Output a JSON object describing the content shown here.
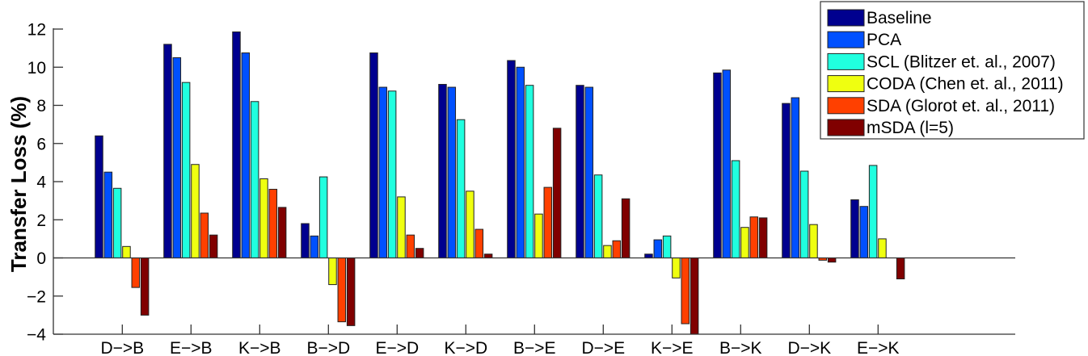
{
  "chart_data": {
    "type": "bar",
    "title": "",
    "xlabel": "",
    "ylabel": "Transfer Loss (%)",
    "ylim": [
      -4,
      12
    ],
    "yticks": [
      -4,
      -2,
      0,
      2,
      4,
      6,
      8,
      10,
      12
    ],
    "grid": false,
    "legend_position": "top-right",
    "categories": [
      "D->B",
      "E->B",
      "K->B",
      "B->D",
      "E->D",
      "K->D",
      "B->E",
      "D->E",
      "K->E",
      "B->K",
      "D->K",
      "E->K"
    ],
    "category_labels": [
      "D−>B",
      "E−>B",
      "K−>B",
      "B−>D",
      "E−>D",
      "K−>D",
      "B−>E",
      "D−>E",
      "K−>E",
      "B−>K",
      "D−>K",
      "E−>K"
    ],
    "series": [
      {
        "name": "Baseline",
        "color": "#00008f",
        "values": [
          6.4,
          11.2,
          11.85,
          1.8,
          10.75,
          9.1,
          10.35,
          9.05,
          0.2,
          9.7,
          8.1,
          3.05
        ]
      },
      {
        "name": "PCA",
        "color": "#0050ff",
        "values": [
          4.5,
          10.5,
          10.75,
          1.15,
          8.95,
          8.95,
          10.0,
          8.95,
          0.95,
          9.85,
          8.4,
          2.7
        ]
      },
      {
        "name": "SCL (Blitzer et. al., 2007)",
        "color": "#20ffdf",
        "values": [
          3.65,
          9.2,
          8.2,
          4.25,
          8.75,
          7.25,
          9.05,
          4.35,
          1.15,
          5.1,
          4.55,
          4.85
        ]
      },
      {
        "name": "CODA (Chen et. al., 2011)",
        "color": "#efff10",
        "values": [
          0.6,
          4.9,
          4.15,
          -1.4,
          3.2,
          3.5,
          2.3,
          0.65,
          -1.05,
          1.6,
          1.75,
          1.0
        ]
      },
      {
        "name": "SDA (Glorot et. al., 2011)",
        "color": "#ff4000",
        "values": [
          -1.55,
          2.35,
          3.6,
          -3.35,
          1.2,
          1.5,
          3.7,
          0.9,
          -3.45,
          2.15,
          -0.12,
          0.0
        ]
      },
      {
        "name": "mSDA (l=5)",
        "color": "#800000",
        "values": [
          -3.0,
          1.2,
          2.65,
          -3.55,
          0.5,
          0.2,
          6.8,
          3.1,
          -4.0,
          2.1,
          -0.22,
          -1.1
        ]
      }
    ]
  }
}
